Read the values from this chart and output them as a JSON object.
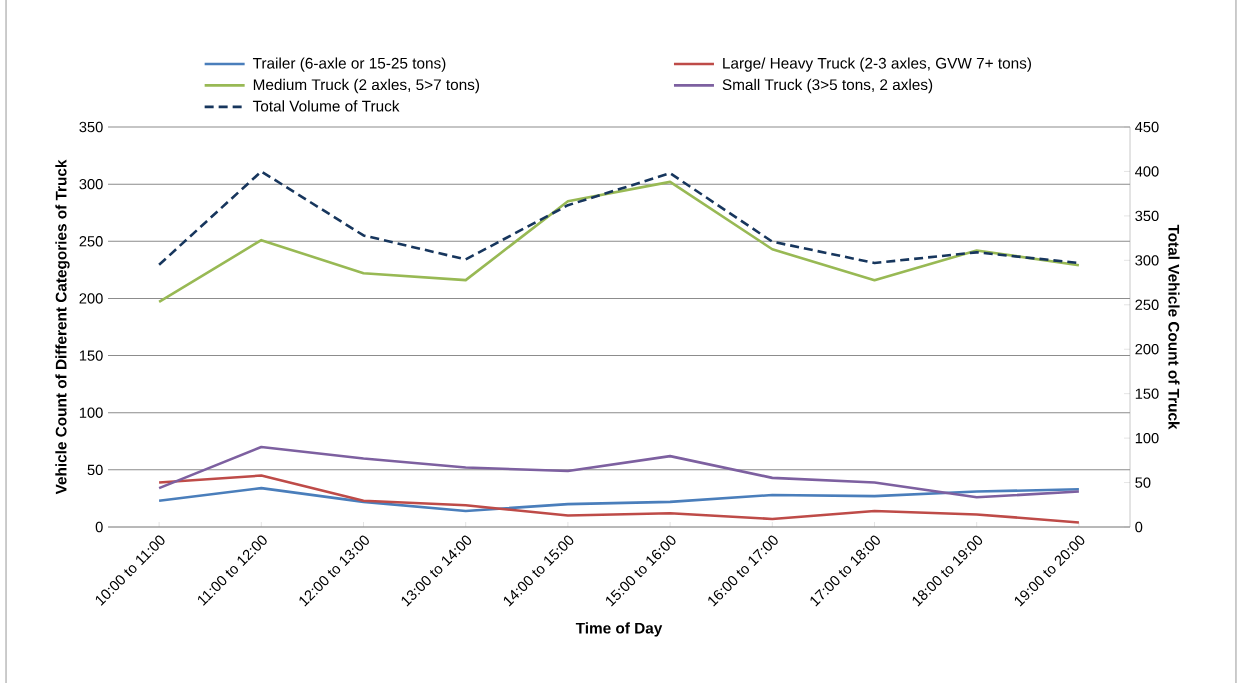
{
  "chart_data": {
    "type": "line",
    "xlabel": "Time of Day",
    "ylabel": "Vehicle Count of Different Categories of Truck",
    "y2label": "Total Vehicle Count of Truck",
    "categories": [
      "10:00 to 11:00",
      "11:00 to 12:00",
      "12:00 to 13:00",
      "13:00 to 14:00",
      "14:00 to 15:00",
      "15:00 to 16:00",
      "16:00 to 17:00",
      "17:00 to 18:00",
      "18:00 to 19:00",
      "19:00 to 20:00"
    ],
    "series": [
      {
        "name": "Trailer (6-axle or 15-25 tons)",
        "color": "#4a7ebb",
        "values": [
          23,
          34,
          22,
          14,
          20,
          22,
          28,
          27,
          31,
          33
        ]
      },
      {
        "name": "Large/ Heavy Truck (2-3 axles, GVW 7+ tons)",
        "color": "#be4b48",
        "values": [
          39,
          45,
          23,
          19,
          10,
          12,
          7,
          14,
          11,
          4
        ]
      },
      {
        "name": "Medium Truck (2 axles, 5>7 tons)",
        "color": "#98b954",
        "values": [
          197,
          251,
          222,
          216,
          285,
          302,
          243,
          216,
          242,
          229
        ]
      },
      {
        "name": "Small Truck (3>5 tons, 2 axles)",
        "color": "#7d60a0",
        "values": [
          34,
          70,
          60,
          52,
          49,
          62,
          43,
          39,
          26,
          31
        ]
      },
      {
        "name": "Total  Volume of Truck",
        "color": "#17365d",
        "axis": "y2",
        "line_style": "dashed",
        "values": [
          295,
          400,
          328,
          301,
          362,
          398,
          321,
          297,
          309,
          297
        ]
      }
    ],
    "ylim": [
      0,
      350
    ],
    "yticks": [
      0,
      50,
      100,
      150,
      200,
      250,
      300,
      350
    ],
    "y2lim": [
      0,
      450
    ],
    "y2ticks": [
      0,
      50,
      100,
      150,
      200,
      250,
      300,
      350,
      400,
      450
    ],
    "grid": "y",
    "legend": "top",
    "marker": "none",
    "line_style": "solid"
  }
}
